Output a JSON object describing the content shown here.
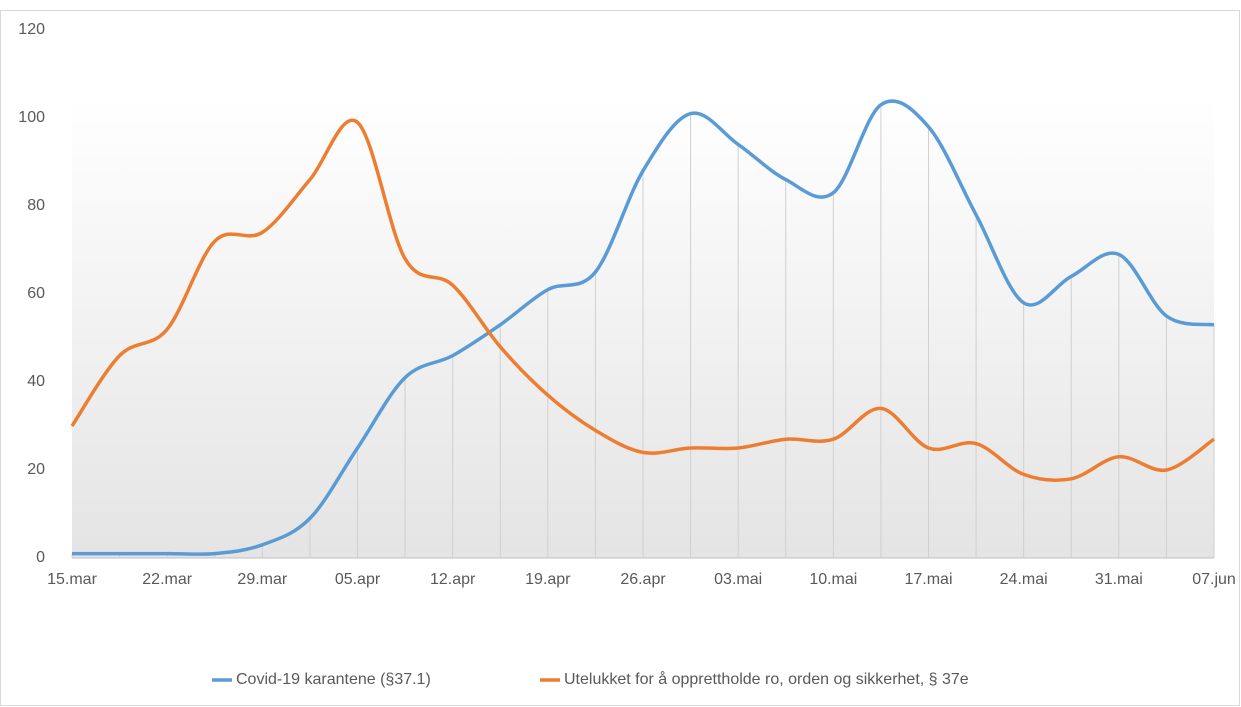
{
  "chart_data": {
    "type": "line",
    "categories": [
      "15.mar",
      null,
      "22.mar",
      null,
      "29.mar",
      null,
      "05.apr",
      null,
      "12.apr",
      null,
      "19.apr",
      null,
      "26.apr",
      null,
      "03.mai",
      null,
      "10.mai",
      null,
      "17.mai",
      null,
      "24.mai",
      null,
      "31.mai",
      null,
      "07.jun"
    ],
    "series": [
      {
        "name": "Covid-19 karantene (§37.1)",
        "color": "#5b9bd5",
        "values": [
          1,
          1,
          1,
          1,
          3,
          9,
          25,
          41,
          46,
          53,
          61,
          65,
          88,
          101,
          94,
          86,
          83,
          103,
          98,
          78,
          58,
          64,
          69,
          55,
          53
        ]
      },
      {
        "name": "Utelukket for å opprettholde ro, orden og sikkerhet, § 37e",
        "color": "#ed7d31",
        "values": [
          30,
          46,
          52,
          72,
          74,
          86,
          99,
          68,
          62,
          48,
          37,
          29,
          24,
          25,
          25,
          27,
          27,
          34,
          25,
          26,
          19,
          18,
          23,
          20,
          27
        ]
      }
    ],
    "ylim": [
      0,
      120
    ],
    "yticks": [
      0,
      20,
      40,
      60,
      80,
      100,
      120
    ],
    "grid": true,
    "legend": "bottom"
  }
}
